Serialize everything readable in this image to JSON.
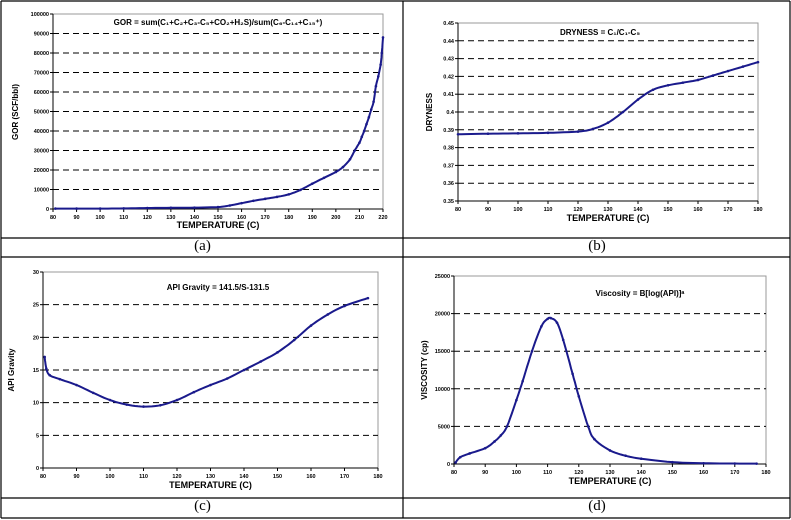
{
  "captions": [
    "(a)",
    "(b)",
    "(c)",
    "(d)"
  ],
  "chart_data": [
    {
      "type": "line",
      "title": "GOR = sum(C₁+C₂+C₃-C₅+CO₂+H₂S)/sum(C₆-C₁₄+C₁₅⁺)",
      "xlabel": "TEMPERATURE (C)",
      "ylabel": "GOR (SCF/bbl)",
      "xlim": [
        80,
        220
      ],
      "xticks": [
        80,
        90,
        100,
        110,
        120,
        130,
        140,
        150,
        160,
        170,
        180,
        190,
        200,
        210,
        220
      ],
      "ylim": [
        0,
        100000
      ],
      "yticks": [
        0,
        10000,
        20000,
        30000,
        40000,
        50000,
        60000,
        70000,
        80000,
        90000,
        100000
      ],
      "grid": "horizontal dashed",
      "color": "#1a1a8c",
      "x": [
        81,
        90,
        100,
        110,
        120,
        130,
        140,
        150,
        155,
        160,
        165,
        170,
        175,
        180,
        185,
        190,
        195,
        200,
        203,
        206,
        208,
        210,
        211,
        212,
        213,
        214,
        215,
        216,
        217,
        218,
        219,
        219.5,
        220
      ],
      "y": [
        200,
        200,
        200,
        300,
        500,
        600,
        700,
        1000,
        1800,
        3000,
        4200,
        5200,
        6200,
        7500,
        9800,
        13000,
        16000,
        19000,
        21500,
        25500,
        30000,
        34000,
        37000,
        40000,
        43500,
        47000,
        51000,
        55000,
        63000,
        68000,
        74000,
        80000,
        88000
      ]
    },
    {
      "type": "line",
      "title": "DRYNESS = C₁/C₁-C₅",
      "xlabel": "TEMPERATURE (C)",
      "ylabel": "DRYNESS",
      "xlim": [
        80,
        180
      ],
      "xticks": [
        80,
        90,
        100,
        110,
        120,
        130,
        140,
        150,
        160,
        170,
        180
      ],
      "ylim": [
        0.35,
        0.45
      ],
      "yticks": [
        0.35,
        0.36,
        0.37,
        0.38,
        0.39,
        0.4,
        0.41,
        0.42,
        0.43,
        0.44,
        0.45
      ],
      "grid": "horizontal dashed",
      "color": "#1a1a8c",
      "x": [
        80,
        90,
        100,
        110,
        120,
        125,
        130,
        135,
        140,
        145,
        150,
        155,
        160,
        165,
        170,
        175,
        180
      ],
      "y": [
        0.3875,
        0.3878,
        0.388,
        0.3883,
        0.389,
        0.3905,
        0.394,
        0.4,
        0.407,
        0.4125,
        0.415,
        0.4165,
        0.418,
        0.4205,
        0.423,
        0.4255,
        0.428
      ]
    },
    {
      "type": "line",
      "title": "API Gravity = 141.5/S-131.5",
      "xlabel": "TEMPERATURE (C)",
      "ylabel": "API Gravity",
      "xlim": [
        80,
        180
      ],
      "xticks": [
        80,
        90,
        100,
        110,
        120,
        130,
        140,
        150,
        160,
        170,
        180
      ],
      "ylim": [
        0,
        30
      ],
      "yticks": [
        0,
        5,
        10,
        15,
        20,
        25,
        30
      ],
      "grid": "horizontal dashed",
      "color": "#1a1a8c",
      "x": [
        80.5,
        81,
        82,
        85,
        90,
        95,
        100,
        105,
        110,
        115,
        120,
        125,
        130,
        135,
        140,
        145,
        150,
        155,
        160,
        165,
        170,
        177
      ],
      "y": [
        17,
        15.2,
        14.2,
        13.6,
        12.7,
        11.5,
        10.4,
        9.7,
        9.4,
        9.6,
        10.4,
        11.6,
        12.7,
        13.7,
        15,
        16.3,
        17.7,
        19.6,
        21.8,
        23.5,
        24.8,
        26
      ]
    },
    {
      "type": "line",
      "title": "Viscosity = B[log(API)]ᵃ",
      "xlabel": "TEMPERATURE (C)",
      "ylabel": "VISCOSITY (cp)",
      "xlim": [
        80,
        180
      ],
      "xticks": [
        80,
        90,
        100,
        110,
        120,
        130,
        140,
        150,
        160,
        170,
        180
      ],
      "ylim": [
        0,
        25000
      ],
      "yticks": [
        0,
        5000,
        10000,
        15000,
        20000,
        25000
      ],
      "grid": "horizontal dashed",
      "color": "#1a1a8c",
      "x": [
        80.5,
        82,
        85,
        90,
        93,
        95,
        97,
        100,
        102,
        105,
        108,
        110,
        111,
        113,
        115,
        118,
        120,
        123,
        125,
        130,
        135,
        140,
        150,
        160,
        170,
        177
      ],
      "y": [
        200,
        900,
        1400,
        2100,
        3000,
        3800,
        5000,
        8500,
        11000,
        15000,
        18300,
        19300,
        19400,
        18800,
        16500,
        12000,
        9000,
        5000,
        3300,
        1800,
        1100,
        700,
        250,
        100,
        60,
        50
      ]
    }
  ]
}
